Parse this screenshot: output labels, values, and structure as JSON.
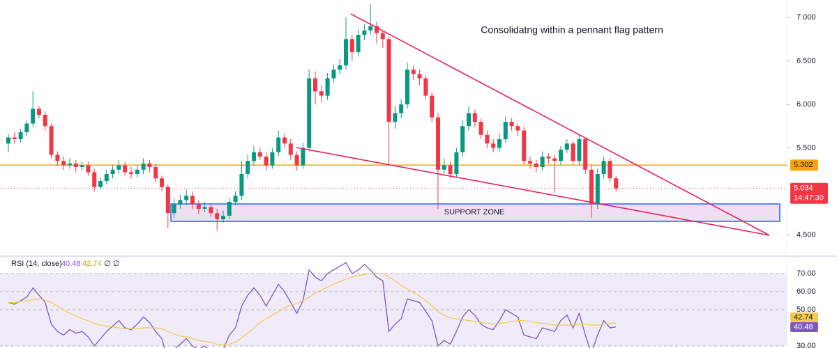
{
  "chart_data": [
    {
      "type": "candlestick",
      "title": "Consolidatng within a pennant flag pattern",
      "annotation": "SUPPORT ZONE",
      "up_color": "#089981",
      "down_color": "#f23645",
      "open": [
        5.55,
        5.62,
        5.6,
        5.68,
        5.78,
        5.95,
        5.88,
        5.75,
        5.42,
        5.35,
        5.3,
        5.32,
        5.28,
        5.3,
        5.22,
        5.05,
        5.12,
        5.2,
        5.25,
        5.3,
        5.22,
        5.2,
        5.25,
        5.32,
        5.28,
        5.15,
        5.05,
        4.75,
        4.85,
        4.9,
        4.95,
        4.85,
        4.8,
        4.82,
        4.75,
        4.68,
        4.72,
        4.88,
        4.95,
        5.2,
        5.35,
        5.45,
        5.4,
        5.3,
        5.45,
        5.62,
        5.55,
        5.42,
        5.3,
        5.5,
        6.3,
        6.15,
        6.1,
        6.3,
        6.4,
        6.45,
        6.75,
        6.6,
        6.8,
        6.85,
        6.9,
        6.82,
        6.75,
        5.8,
        5.9,
        6.0,
        6.4,
        6.35,
        6.3,
        6.1,
        5.85,
        5.25,
        5.3,
        5.2,
        5.45,
        5.75,
        5.9,
        5.8,
        5.65,
        5.55,
        5.5,
        5.6,
        5.8,
        5.75,
        5.7,
        5.35,
        5.32,
        5.28,
        5.4,
        5.38,
        5.35,
        5.48,
        5.55,
        5.35,
        5.6,
        5.25,
        4.85,
        5.2,
        5.35,
        5.15
      ],
      "high": [
        5.66,
        5.68,
        5.72,
        5.82,
        6.15,
        5.98,
        5.92,
        5.78,
        5.46,
        5.4,
        5.38,
        5.36,
        5.34,
        5.34,
        5.26,
        5.16,
        5.25,
        5.3,
        5.36,
        5.34,
        5.28,
        5.3,
        5.38,
        5.36,
        5.32,
        5.18,
        5.08,
        4.92,
        4.96,
        5.02,
        5.0,
        4.9,
        4.88,
        4.86,
        4.8,
        4.78,
        4.92,
        5.0,
        5.35,
        5.42,
        5.52,
        5.5,
        5.45,
        5.5,
        5.7,
        5.66,
        5.6,
        5.46,
        5.56,
        6.4,
        6.38,
        6.22,
        6.36,
        6.46,
        6.52,
        7.0,
        6.8,
        6.86,
        6.92,
        7.15,
        6.95,
        6.85,
        6.78,
        5.98,
        6.06,
        6.48,
        6.45,
        6.4,
        6.34,
        6.14,
        5.9,
        5.38,
        5.34,
        5.5,
        5.82,
        5.98,
        5.94,
        5.84,
        5.7,
        5.6,
        5.66,
        5.86,
        5.84,
        5.78,
        5.74,
        5.4,
        5.36,
        5.46,
        5.44,
        5.42,
        5.52,
        5.6,
        5.58,
        5.66,
        5.62,
        5.3,
        5.26,
        5.4,
        5.38,
        5.18
      ],
      "low": [
        5.45,
        5.55,
        5.56,
        5.64,
        5.74,
        5.84,
        5.7,
        5.38,
        5.3,
        5.25,
        5.26,
        5.22,
        5.24,
        5.18,
        5.0,
        5.02,
        5.08,
        5.15,
        5.2,
        5.18,
        5.15,
        5.16,
        5.2,
        5.22,
        5.1,
        5.0,
        4.58,
        4.7,
        4.8,
        4.86,
        4.8,
        4.74,
        4.76,
        4.7,
        4.55,
        4.64,
        4.68,
        4.84,
        4.9,
        5.15,
        5.3,
        5.36,
        5.24,
        5.26,
        5.4,
        5.5,
        5.36,
        5.24,
        5.26,
        5.46,
        6.0,
        6.02,
        6.05,
        6.25,
        6.35,
        6.4,
        6.5,
        6.55,
        6.74,
        6.8,
        6.7,
        6.65,
        5.3,
        5.72,
        5.84,
        5.95,
        6.28,
        6.22,
        6.05,
        5.8,
        4.8,
        5.2,
        5.15,
        5.16,
        5.4,
        5.7,
        5.74,
        5.6,
        5.5,
        5.45,
        5.46,
        5.56,
        5.7,
        5.64,
        5.3,
        5.26,
        5.22,
        5.24,
        5.32,
        4.98,
        5.3,
        5.44,
        5.3,
        5.3,
        5.2,
        4.7,
        4.8,
        5.15,
        5.1,
        5.0
      ],
      "close": [
        5.62,
        5.6,
        5.68,
        5.78,
        5.95,
        5.88,
        5.75,
        5.42,
        5.35,
        5.3,
        5.32,
        5.28,
        5.3,
        5.22,
        5.05,
        5.12,
        5.2,
        5.25,
        5.3,
        5.22,
        5.2,
        5.25,
        5.32,
        5.28,
        5.15,
        5.05,
        4.75,
        4.85,
        4.9,
        4.95,
        4.85,
        4.8,
        4.82,
        4.75,
        4.68,
        4.72,
        4.88,
        4.95,
        5.2,
        5.35,
        5.45,
        5.4,
        5.3,
        5.45,
        5.62,
        5.55,
        5.42,
        5.3,
        5.5,
        6.3,
        6.15,
        6.1,
        6.3,
        6.4,
        6.45,
        6.75,
        6.6,
        6.8,
        6.85,
        6.9,
        6.82,
        6.75,
        5.8,
        5.9,
        6.0,
        6.4,
        6.35,
        6.3,
        6.1,
        5.85,
        5.25,
        5.3,
        5.2,
        5.45,
        5.75,
        5.9,
        5.8,
        5.65,
        5.55,
        5.5,
        5.6,
        5.8,
        5.75,
        5.7,
        5.35,
        5.32,
        5.28,
        5.4,
        5.38,
        5.35,
        5.48,
        5.55,
        5.35,
        5.6,
        5.25,
        4.85,
        5.2,
        5.35,
        5.15,
        5.034
      ],
      "close_label": "5.034",
      "countdown": "14:47:30",
      "levels": [
        {
          "value": 5.302,
          "label": "5.302",
          "color": "#f7a600"
        }
      ],
      "ylim": [
        4.28,
        7.2
      ],
      "yticks": [
        {
          "value": 4.5,
          "label": "4.500"
        },
        {
          "value": 5.5,
          "label": "5.500"
        },
        {
          "value": 6,
          "label": "6.000"
        },
        {
          "value": 6.5,
          "label": "6.500"
        },
        {
          "value": 7,
          "label": "7.000"
        }
      ]
    },
    {
      "type": "line",
      "title": "RSI (14, close)",
      "header_extras": [
        "∅",
        "∅"
      ],
      "series": [
        {
          "color": "#7e57c2",
          "values": [
            54,
            53,
            55,
            57,
            62,
            58,
            54,
            42,
            38,
            36,
            39,
            37,
            38,
            35,
            30,
            34,
            38,
            41,
            44,
            40,
            39,
            42,
            46,
            43,
            38,
            34,
            22,
            28,
            31,
            34,
            30,
            28,
            30,
            27,
            24,
            28,
            36,
            40,
            52,
            58,
            62,
            58,
            52,
            58,
            64,
            60,
            54,
            48,
            55,
            72,
            68,
            66,
            70,
            72,
            74,
            76,
            70,
            72,
            75,
            72,
            68,
            66,
            38,
            42,
            45,
            56,
            55,
            54,
            49,
            44,
            30,
            33,
            31,
            38,
            46,
            50,
            47,
            42,
            40,
            39,
            44,
            50,
            48,
            46,
            36,
            35,
            34,
            40,
            39,
            38,
            44,
            47,
            40,
            48,
            36,
            26,
            36,
            44,
            40,
            40.48
          ]
        },
        {
          "color": "#f2c94c",
          "values": [
            54,
            54,
            54.5,
            55,
            55.5,
            56,
            55.5,
            54,
            52,
            50,
            48,
            46.5,
            45,
            44,
            42.5,
            41.5,
            41,
            40.5,
            40,
            39.5,
            39.5,
            39.5,
            40,
            40,
            40,
            39.5,
            38,
            36.5,
            35.5,
            35,
            34,
            33,
            32.5,
            32,
            31,
            30.5,
            31,
            32,
            34.5,
            37,
            40,
            43,
            45,
            47,
            49,
            51,
            52.5,
            53.5,
            55,
            57,
            59,
            61,
            62.5,
            64,
            65.5,
            67,
            68,
            69,
            69.5,
            70,
            70.2,
            70,
            68,
            66,
            63.5,
            61.5,
            59.5,
            57.5,
            55,
            52,
            49,
            47,
            45.5,
            45,
            44.5,
            44,
            43.5,
            43,
            42.5,
            42,
            42.5,
            43,
            43.5,
            44,
            44,
            43.5,
            43,
            42.5,
            42,
            41.5,
            41.5,
            41.5,
            41.5,
            42,
            42,
            41.5,
            41.5,
            42,
            42.5,
            42.74
          ]
        }
      ],
      "band": [
        30,
        70
      ],
      "ylim": [
        28.85,
        78.85
      ],
      "yticks": [
        {
          "value": 30,
          "label": "30.00"
        },
        {
          "value": 50,
          "label": "50.00"
        },
        {
          "value": 60,
          "label": "60.00"
        },
        {
          "value": 70,
          "label": "70.00"
        }
      ]
    }
  ]
}
